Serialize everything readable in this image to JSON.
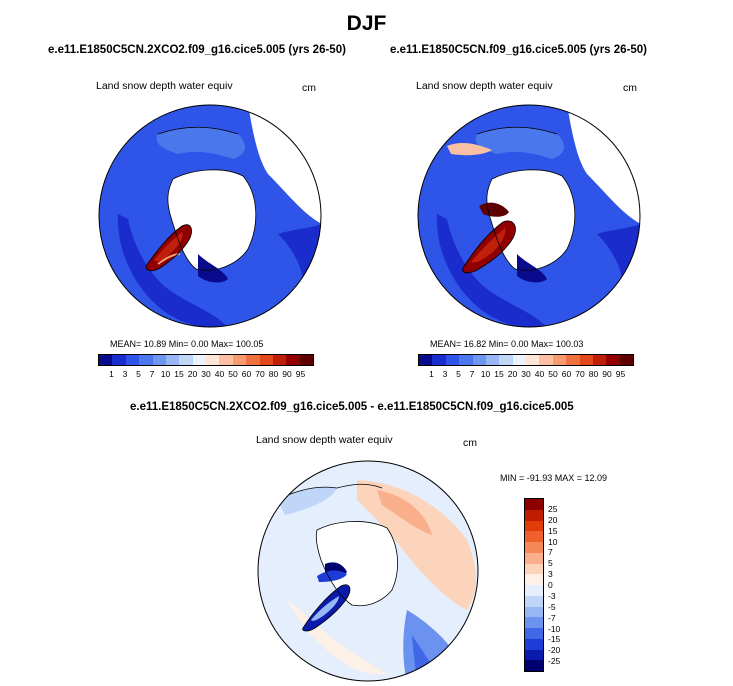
{
  "page": {
    "title": "DJF"
  },
  "chart_data": [
    {
      "type": "heatmap",
      "projection": "north polar stereographic",
      "title": "e.e11.E1850C5CN.2XCO2.f09_g16.cice5.005 (yrs 26-50)",
      "field": "Land snow depth water equiv",
      "units": "cm",
      "stats": {
        "label": "MEAN=  10.89  Min=   0.00  Max= 100.05",
        "mean": 10.89,
        "min": 0.0,
        "max": 100.05
      },
      "colorbar": {
        "levels": [
          "1",
          "3",
          "5",
          "7",
          "10",
          "15",
          "20",
          "30",
          "40",
          "50",
          "60",
          "70",
          "80",
          "90",
          "95"
        ],
        "colors": [
          "#0a0a8c",
          "#1a2ccc",
          "#2e55e8",
          "#4a78ec",
          "#6d96f0",
          "#96b6f4",
          "#c0d6f8",
          "#eaf2fc",
          "#fde4d4",
          "#f9c0a4",
          "#f69a72",
          "#f0703e",
          "#e44818",
          "#c0200a",
          "#900000",
          "#5c0000"
        ],
        "orientation": "horizontal"
      }
    },
    {
      "type": "heatmap",
      "projection": "north polar stereographic",
      "title": "e.e11.E1850C5CN.f09_g16.cice5.005 (yrs 26-50)",
      "field": "Land snow depth water equiv",
      "units": "cm",
      "stats": {
        "label": "MEAN=  16.82  Min=   0.00  Max= 100.03",
        "mean": 16.82,
        "min": 0.0,
        "max": 100.03
      },
      "colorbar": {
        "levels": [
          "1",
          "3",
          "5",
          "7",
          "10",
          "15",
          "20",
          "30",
          "40",
          "50",
          "60",
          "70",
          "80",
          "90",
          "95"
        ],
        "colors": [
          "#0a0a8c",
          "#1a2ccc",
          "#2e55e8",
          "#4a78ec",
          "#6d96f0",
          "#96b6f4",
          "#c0d6f8",
          "#eaf2fc",
          "#fde4d4",
          "#f9c0a4",
          "#f69a72",
          "#f0703e",
          "#e44818",
          "#c0200a",
          "#900000",
          "#5c0000"
        ],
        "orientation": "horizontal"
      }
    },
    {
      "type": "heatmap",
      "projection": "north polar stereographic",
      "title": "e.e11.E1850C5CN.2XCO2.f09_g16.cice5.005 - e.e11.E1850C5CN.f09_g16.cice5.005",
      "field": "Land snow depth water equiv",
      "units": "cm",
      "stats": {
        "label": "MIN = -91.93 MAX =  12.09",
        "min": -91.93,
        "max": 12.09
      },
      "colorbar": {
        "levels": [
          "25",
          "20",
          "15",
          "10",
          "7",
          "5",
          "3",
          "0",
          "-3",
          "-5",
          "-7",
          "-10",
          "-15",
          "-20",
          "-25"
        ],
        "colors": [
          "#8c0000",
          "#c01c00",
          "#e03c08",
          "#f0602c",
          "#f68858",
          "#f9ae8c",
          "#fcd4bc",
          "#fdf0e6",
          "#e4eefc",
          "#c0d6f8",
          "#96b6f4",
          "#6a92ee",
          "#4068e6",
          "#1e3cd6",
          "#0a1aac",
          "#00006e"
        ],
        "orientation": "vertical"
      }
    }
  ]
}
